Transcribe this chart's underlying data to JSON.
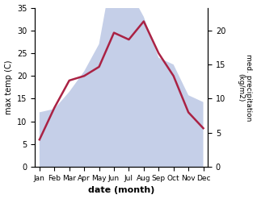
{
  "months": [
    "Jan",
    "Feb",
    "Mar",
    "Apr",
    "May",
    "Jun",
    "Jul",
    "Aug",
    "Sep",
    "Oct",
    "Nov",
    "Dec"
  ],
  "month_positions": [
    0,
    1,
    2,
    3,
    4,
    5,
    6,
    7,
    8,
    9,
    10,
    11
  ],
  "temperature": [
    6.0,
    13.0,
    19.0,
    20.0,
    22.0,
    29.5,
    28.0,
    32.0,
    25.0,
    20.0,
    12.0,
    8.5
  ],
  "precipitation": [
    8.0,
    8.5,
    11.0,
    14.0,
    18.0,
    30.0,
    26.0,
    22.0,
    16.0,
    15.0,
    10.5,
    9.5
  ],
  "temp_color": "#aa2244",
  "precip_fill_color": "#c5cfe8",
  "temp_ylim": [
    0,
    35
  ],
  "precip_ylim": [
    0,
    23.33
  ],
  "temp_yticks": [
    0,
    5,
    10,
    15,
    20,
    25,
    30,
    35
  ],
  "precip_yticks": [
    0,
    5,
    10,
    15,
    20
  ],
  "ylabel_left": "max temp (C)",
  "ylabel_right": "med. precipitation\n(kg/m2)",
  "xlabel": "date (month)",
  "background_color": "#ffffff",
  "line_width": 1.8
}
